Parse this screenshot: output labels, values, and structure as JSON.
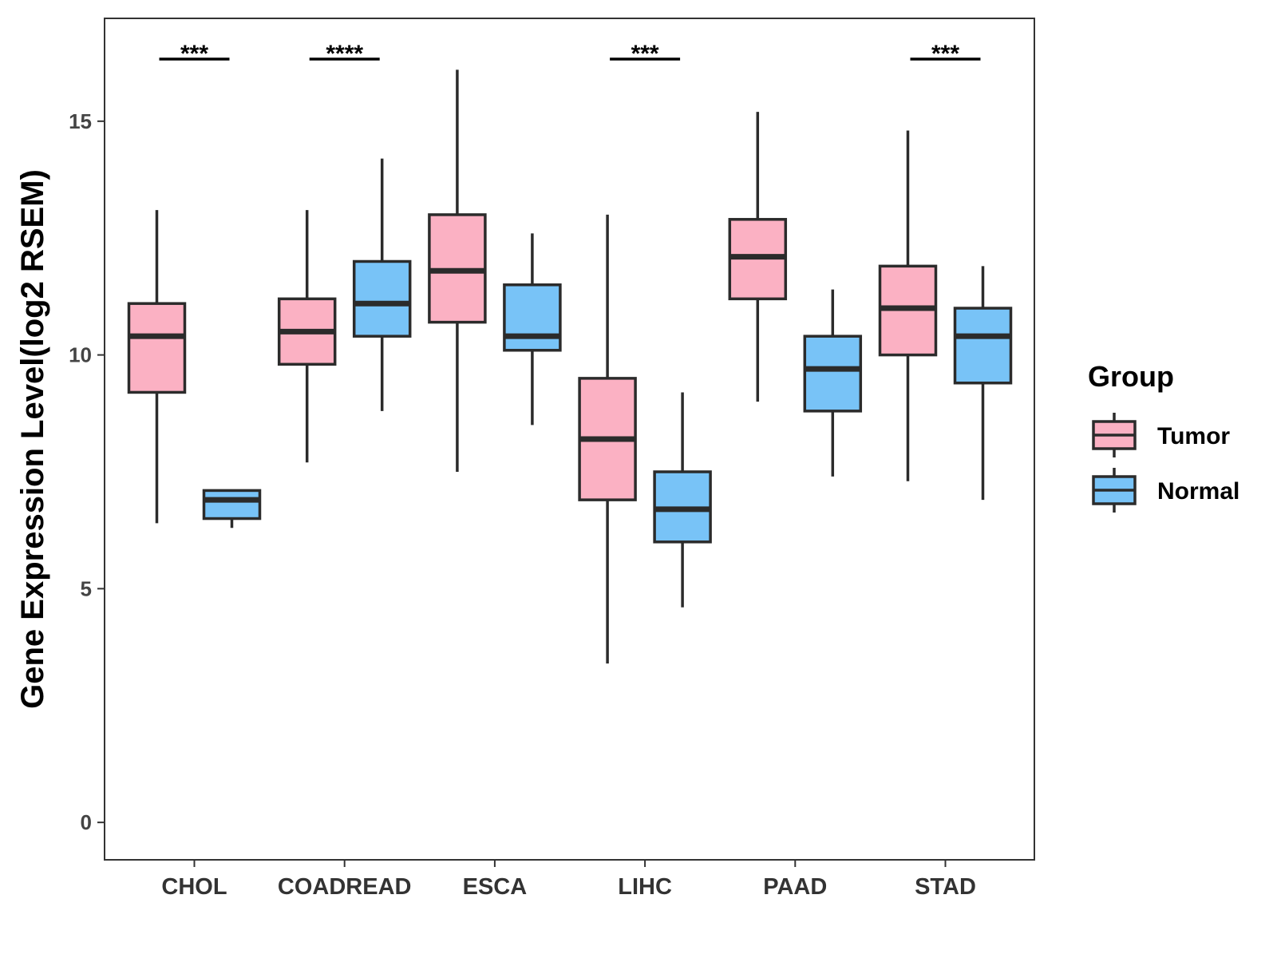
{
  "chart_data": {
    "type": "boxplot",
    "title": "",
    "xlabel": "",
    "ylabel": "Gene Expression Level(log2 RSEM)",
    "ylim": [
      -0.8,
      17.2
    ],
    "yticks": [
      0,
      5,
      10,
      15
    ],
    "grid": false,
    "categories": [
      "CHOL",
      "COADREAD",
      "ESCA",
      "LIHC",
      "PAAD",
      "STAD"
    ],
    "series": [
      {
        "name": "Tumor",
        "color": "#FBB1C3",
        "stats": [
          {
            "whisker_low": 6.4,
            "q1": 9.2,
            "median": 10.4,
            "q3": 11.1,
            "whisker_high": 13.1
          },
          {
            "whisker_low": 7.7,
            "q1": 9.8,
            "median": 10.5,
            "q3": 11.2,
            "whisker_high": 13.1
          },
          {
            "whisker_low": 7.5,
            "q1": 10.7,
            "median": 11.8,
            "q3": 13.0,
            "whisker_high": 16.1
          },
          {
            "whisker_low": 3.4,
            "q1": 6.9,
            "median": 8.2,
            "q3": 9.5,
            "whisker_high": 13.0
          },
          {
            "whisker_low": 9.0,
            "q1": 11.2,
            "median": 12.1,
            "q3": 12.9,
            "whisker_high": 15.2
          },
          {
            "whisker_low": 7.3,
            "q1": 10.0,
            "median": 11.0,
            "q3": 11.9,
            "whisker_high": 14.8
          }
        ]
      },
      {
        "name": "Normal",
        "color": "#78C3F7",
        "stats": [
          {
            "whisker_low": 6.3,
            "q1": 6.5,
            "median": 6.9,
            "q3": 7.1,
            "whisker_high": 7.1
          },
          {
            "whisker_low": 8.8,
            "q1": 10.4,
            "median": 11.1,
            "q3": 12.0,
            "whisker_high": 14.2
          },
          {
            "whisker_low": 8.5,
            "q1": 10.1,
            "median": 10.4,
            "q3": 11.5,
            "whisker_high": 12.6
          },
          {
            "whisker_low": 4.6,
            "q1": 6.0,
            "median": 6.7,
            "q3": 7.5,
            "whisker_high": 9.2
          },
          {
            "whisker_low": 7.4,
            "q1": 8.8,
            "median": 9.7,
            "q3": 10.4,
            "whisker_high": 11.4
          },
          {
            "whisker_low": 6.9,
            "q1": 9.4,
            "median": 10.4,
            "q3": 11.0,
            "whisker_high": 11.9
          }
        ]
      }
    ],
    "significance": [
      {
        "category": "CHOL",
        "label": "***"
      },
      {
        "category": "COADREAD",
        "label": "****"
      },
      {
        "category": "LIHC",
        "label": "***"
      },
      {
        "category": "STAD",
        "label": "***"
      }
    ],
    "legend": {
      "title": "Group",
      "position": "right",
      "entries": [
        "Tumor",
        "Normal"
      ]
    }
  }
}
